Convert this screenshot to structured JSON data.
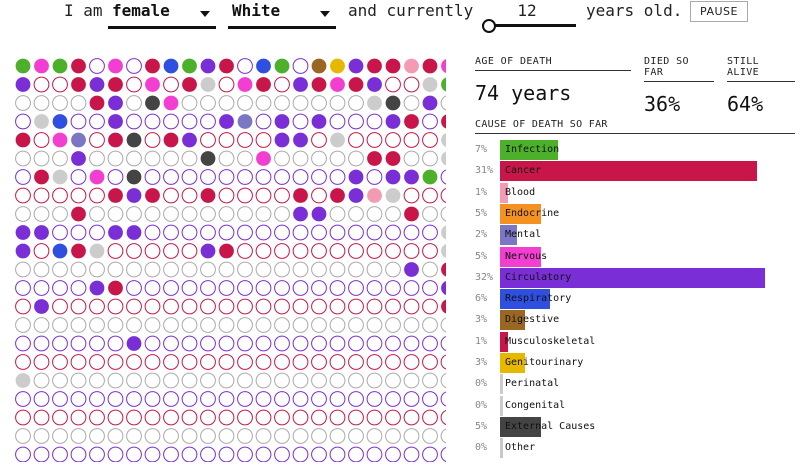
{
  "header": {
    "prefix": "I am",
    "sex": "female",
    "race": "White",
    "middle": "and currently",
    "age": "12",
    "suffix": "years old.",
    "pause_label": "PAUSE"
  },
  "stats": {
    "age_of_death_label": "AGE OF DEATH",
    "age_of_death_value": "74 years",
    "died_label": "DIED SO FAR",
    "died_value": "36%",
    "alive_label": "STILL ALIVE",
    "alive_value": "64%"
  },
  "causes_title": "CAUSE OF DEATH SO FAR",
  "causes": [
    {
      "pct": "7%",
      "name": "Infection",
      "value": 7,
      "color": "#4cb02a"
    },
    {
      "pct": "31%",
      "name": "Cancer",
      "value": 31,
      "color": "#c8164a"
    },
    {
      "pct": "1%",
      "name": "Blood",
      "value": 1,
      "color": "#f49bb4"
    },
    {
      "pct": "5%",
      "name": "Endocrine",
      "value": 5,
      "color": "#f39222"
    },
    {
      "pct": "2%",
      "name": "Mental",
      "value": 2,
      "color": "#7b77c4"
    },
    {
      "pct": "5%",
      "name": "Nervous",
      "value": 5,
      "color": "#f23ed1"
    },
    {
      "pct": "32%",
      "name": "Circulatory",
      "value": 32,
      "color": "#7a2ed6"
    },
    {
      "pct": "6%",
      "name": "Respiratory",
      "value": 6,
      "color": "#2f4fe0"
    },
    {
      "pct": "3%",
      "name": "Digestive",
      "value": 3,
      "color": "#9a6722"
    },
    {
      "pct": "1%",
      "name": "Musculoskeletal",
      "value": 1,
      "color": "#c8164a"
    },
    {
      "pct": "3%",
      "name": "Genitourinary",
      "value": 3,
      "color": "#e6b800"
    },
    {
      "pct": "0%",
      "name": "Perinatal",
      "value": 0,
      "color": "#cccccc"
    },
    {
      "pct": "0%",
      "name": "Congenital",
      "value": 0,
      "color": "#cccccc"
    },
    {
      "pct": "5%",
      "name": "External Causes",
      "value": 5,
      "color": "#444444"
    },
    {
      "pct": "0%",
      "name": "Other",
      "value": 0,
      "color": "#c8c8c8"
    }
  ],
  "alive_dot": {
    "fill": "#ffffff",
    "rings": [
      "#7a2ed6",
      "#c8164a",
      "#aaaaaa"
    ]
  },
  "dot_rows": [
    "ABACIBICMADCIMAIJHDCCNCB",
    "DIICDCIBICEIBCIDCBCDIIEA",
    "IIIICDIKBIIIIIIIIIIEKIDI",
    "IEMIIDIIIIIDLIDIDIIIDCIC",
    "CIBLICKICDIIIIDDIEIIIIIE",
    "IIIDIIIIIIKIIBIIIIICCIIE",
    "ICEIBIKIIIIIIIIIIIDIDDAI",
    "IIIIICDCIICIIIICICDNEIII",
    "IIICIIIIIIIIIIIDDIIIICII",
    "DDIIIDDIIIIIIIIIIIIIIIIE",
    "DIFCEIIIIIDCIIIIIIIIIIIE",
    "IIIIIIIIIIIIIIIIIIIIIDIC",
    "IIIIDCIIIIIIIIIIIIIIIIID",
    "IDIIIIIIIIIIIIIIIIIIIIIC",
    "IIIIIIIIIIIIIIIIIIIIIIII",
    "IIIIIIDIIIIIIIIIIIIIIIII",
    "IIIIIIIIIIIIIIIIIIIIIIII",
    "EIIIIIIIIIIIIIIIIIIIIIII",
    "IIIIIIIIIIIIIIIIIIIIIIII",
    "IIIIIIIIIIIIIIIIIIIIIIII",
    "IIIIIIIIIIIIIIIIIIIIIIII",
    "IIIIIIIIIIIIIIIIIIIIIIII"
  ]
}
